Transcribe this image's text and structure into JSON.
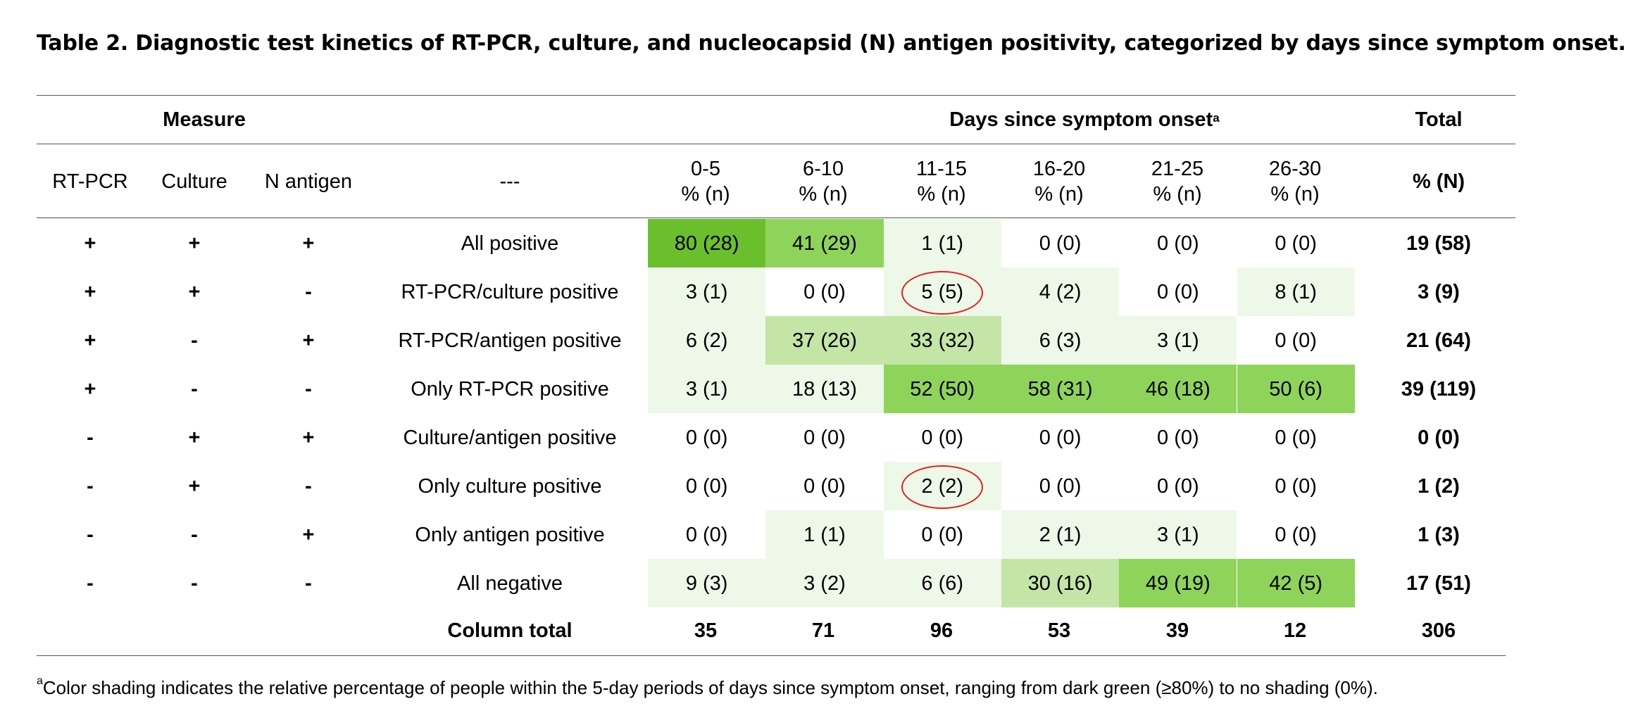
{
  "title": "Table 2.  Diagnostic test kinetics of RT-PCR, culture, and nucleocapsid (N) antigen positivity, categorized by days since symptom onset.",
  "header": {
    "group_measure": "Measure",
    "group_days": "Days since symptom onset",
    "group_days_sup": "a",
    "group_total": "Total",
    "col_rtpcr": "RT-PCR",
    "col_culture": "Culture",
    "col_nantigen": "N antigen",
    "col_desc": "---",
    "day_cols": [
      {
        "range": "0-5",
        "unit": "% (n)"
      },
      {
        "range": "6-10",
        "unit": "% (n)"
      },
      {
        "range": "11-15",
        "unit": "% (n)"
      },
      {
        "range": "16-20",
        "unit": "% (n)"
      },
      {
        "range": "21-25",
        "unit": "% (n)"
      },
      {
        "range": "26-30",
        "unit": "% (n)"
      }
    ],
    "total_unit": "% (N)"
  },
  "rows": [
    {
      "rtpcr": "+",
      "culture": "+",
      "antigen": "+",
      "label": "All positive",
      "cells": [
        "80 (28)",
        "41 (29)",
        "1 (1)",
        "0 (0)",
        "0 (0)",
        "0 (0)"
      ],
      "shade": [
        "#6bbf2c",
        "#8fd45a",
        "#eef8e8",
        "#ffffff",
        "#ffffff",
        "#ffffff"
      ],
      "total": "19 (58)"
    },
    {
      "rtpcr": "+",
      "culture": "+",
      "antigen": "-",
      "label": "RT-PCR/culture positive",
      "cells": [
        "3 (1)",
        "0 (0)",
        "5 (5)",
        "4 (2)",
        "0 (0)",
        "8 (1)"
      ],
      "shade": [
        "#eef8e8",
        "#ffffff",
        "#eef8e8",
        "#eef8e8",
        "#ffffff",
        "#eef8e8"
      ],
      "total": "3 (9)"
    },
    {
      "rtpcr": "+",
      "culture": "-",
      "antigen": "+",
      "label": "RT-PCR/antigen positive",
      "cells": [
        "6 (2)",
        "37 (26)",
        "33 (32)",
        "6 (3)",
        "3 (1)",
        "0 (0)"
      ],
      "shade": [
        "#eef8e8",
        "#c3e5a6",
        "#c3e5a6",
        "#eef8e8",
        "#eef8e8",
        "#ffffff"
      ],
      "total": "21 (64)"
    },
    {
      "rtpcr": "+",
      "culture": "-",
      "antigen": "-",
      "label": "Only RT-PCR positive",
      "cells": [
        "3 (1)",
        "18 (13)",
        "52 (50)",
        "58 (31)",
        "46 (18)",
        "50 (6)"
      ],
      "shade": [
        "#eef8e8",
        "#eef8e8",
        "#8fd45a",
        "#8fd45a",
        "#8fd45a",
        "#8fd45a"
      ],
      "total": "39 (119)"
    },
    {
      "rtpcr": "-",
      "culture": "+",
      "antigen": "+",
      "label": "Culture/antigen positive",
      "cells": [
        "0 (0)",
        "0 (0)",
        "0 (0)",
        "0 (0)",
        "0 (0)",
        "0 (0)"
      ],
      "shade": [
        "#ffffff",
        "#ffffff",
        "#ffffff",
        "#ffffff",
        "#ffffff",
        "#ffffff"
      ],
      "total": "0 (0)"
    },
    {
      "rtpcr": "-",
      "culture": "+",
      "antigen": "-",
      "label": "Only culture positive",
      "cells": [
        "0 (0)",
        "0 (0)",
        "2 (2)",
        "0 (0)",
        "0 (0)",
        "0 (0)"
      ],
      "shade": [
        "#ffffff",
        "#ffffff",
        "#eef8e8",
        "#ffffff",
        "#ffffff",
        "#ffffff"
      ],
      "total": "1 (2)"
    },
    {
      "rtpcr": "-",
      "culture": "-",
      "antigen": "+",
      "label": "Only antigen positive",
      "cells": [
        "0 (0)",
        "1 (1)",
        "0 (0)",
        "2 (1)",
        "3 (1)",
        "0 (0)"
      ],
      "shade": [
        "#ffffff",
        "#eef8e8",
        "#ffffff",
        "#eef8e8",
        "#eef8e8",
        "#ffffff"
      ],
      "total": "1 (3)"
    },
    {
      "rtpcr": "-",
      "culture": "-",
      "antigen": "-",
      "label": "All negative",
      "cells": [
        "9 (3)",
        "3 (2)",
        "6 (6)",
        "30 (16)",
        "49 (19)",
        "42 (5)"
      ],
      "shade": [
        "#eef8e8",
        "#eef8e8",
        "#eef8e8",
        "#c3e5a6",
        "#8fd45a",
        "#8fd45a"
      ],
      "total": "17 (51)"
    }
  ],
  "column_total": {
    "label": "Column total",
    "values": [
      "35",
      "71",
      "96",
      "53",
      "39",
      "12"
    ],
    "total": "306"
  },
  "highlight_circle_color": "#e02020",
  "footnote": {
    "sup": "a",
    "text": "Color shading indicates the relative percentage of people within the 5-day periods of days since symptom onset, ranging from dark green (≥80%) to no shading (0%)."
  }
}
